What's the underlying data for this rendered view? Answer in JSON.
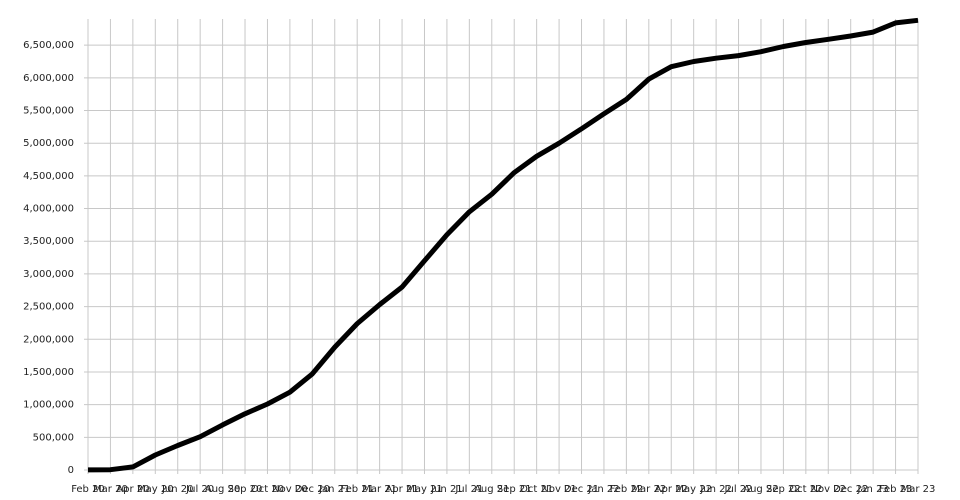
{
  "chart_data": {
    "type": "line",
    "categories": [
      "Feb 20",
      "Mar 20",
      "Apr 20",
      "May 20",
      "Jun 20",
      "Jul 20",
      "Aug 20",
      "Sep 20",
      "Oct 20",
      "Nov 20",
      "Dec 20",
      "Jan 21",
      "Feb 21",
      "Mar 21",
      "Apr 21",
      "May 21",
      "Jun 21",
      "Jul 21",
      "Aug 21",
      "Sep 21",
      "Oct 21",
      "Nov 21",
      "Dec 21",
      "Jan 22",
      "Feb 22",
      "Mar 22",
      "Apr 22",
      "May 22",
      "Jun 22",
      "Jul 22",
      "Aug 22",
      "Sep 22",
      "Oct 22",
      "Nov 22",
      "Dec 22",
      "Jan 23",
      "Feb 23",
      "Mar 23"
    ],
    "values": [
      2000,
      5000,
      47000,
      230000,
      375000,
      510000,
      690000,
      860000,
      1010000,
      1190000,
      1470000,
      1880000,
      2240000,
      2530000,
      2800000,
      3200000,
      3600000,
      3950000,
      4220000,
      4550000,
      4800000,
      5000000,
      5220000,
      5450000,
      5670000,
      5980000,
      6170000,
      6250000,
      6300000,
      6340000,
      6400000,
      6480000,
      6540000,
      6590000,
      6640000,
      6700000,
      6840000,
      6880000
    ],
    "color": "#000000",
    "ylim": [
      0,
      6900000
    ],
    "yticks": [
      0,
      {
        "value": 500000,
        "label": "500,000"
      },
      {
        "value": 1000000,
        "label": "1,000,000"
      },
      {
        "value": 1500000,
        "label": "1,500,000"
      },
      {
        "value": 2000000,
        "label": "2,000,000"
      },
      {
        "value": 2500000,
        "label": "2,500,000"
      },
      {
        "value": 3000000,
        "label": "3,000,000"
      },
      {
        "value": 3500000,
        "label": "3,500,000"
      },
      {
        "value": 4000000,
        "label": "4,000,000"
      },
      {
        "value": 4500000,
        "label": "4,500,000"
      },
      {
        "value": 5000000,
        "label": "5,000,000"
      },
      {
        "value": 5500000,
        "label": "5,500,000"
      },
      {
        "value": 6000000,
        "label": "6,000,000"
      },
      {
        "value": 6500000,
        "label": "6,500,000"
      }
    ],
    "grid": true
  }
}
